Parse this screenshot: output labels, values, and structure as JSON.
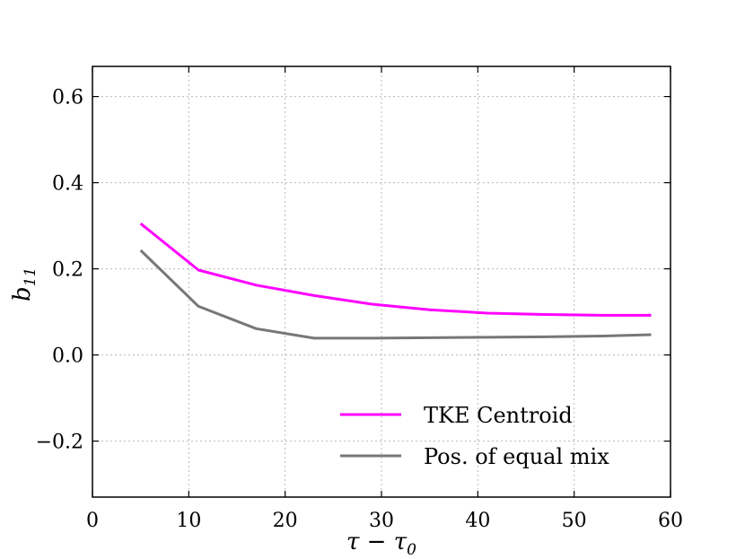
{
  "chart_data": {
    "type": "line",
    "title": "",
    "xlabel": "τ − τ",
    "xlabel_sub": "0",
    "ylabel": "b",
    "ylabel_sub": "11",
    "xlim": [
      0,
      60
    ],
    "ylim": [
      -0.33,
      0.67
    ],
    "xticks": [
      0,
      10,
      20,
      30,
      40,
      50,
      60
    ],
    "xtick_labels": [
      "0",
      "10",
      "20",
      "30",
      "40",
      "50",
      "60"
    ],
    "yticks": [
      -0.2,
      0.0,
      0.2,
      0.4,
      0.6
    ],
    "ytick_labels": [
      "−0.2",
      "0.0",
      "0.2",
      "0.4",
      "0.6"
    ],
    "grid": true,
    "legend_position": "lower-right",
    "series": [
      {
        "name": "TKE Centroid",
        "color": "#ff00ff",
        "x": [
          5,
          11,
          17,
          23,
          29,
          35,
          41,
          47,
          53,
          58
        ],
        "y": [
          0.305,
          0.197,
          0.162,
          0.138,
          0.118,
          0.105,
          0.097,
          0.094,
          0.092,
          0.092
        ]
      },
      {
        "name": "Pos. of equal mix",
        "color": "#777777",
        "x": [
          5,
          11,
          17,
          23,
          29,
          35,
          41,
          47,
          53,
          58
        ],
        "y": [
          0.243,
          0.113,
          0.061,
          0.039,
          0.039,
          0.04,
          0.041,
          0.042,
          0.044,
          0.047
        ]
      }
    ]
  }
}
